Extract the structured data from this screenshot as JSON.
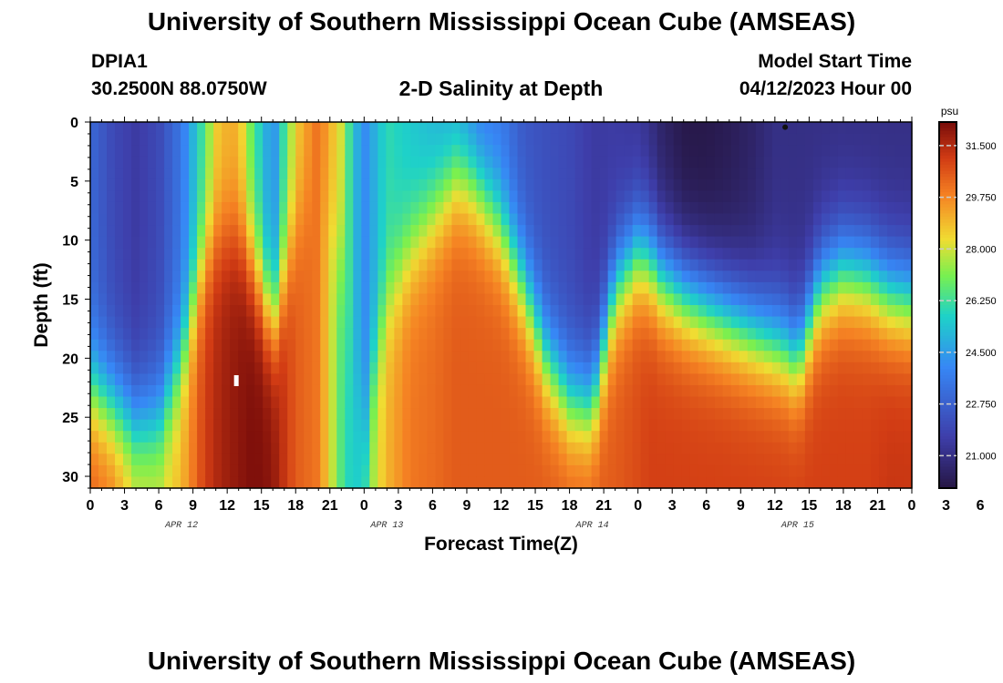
{
  "page": {
    "title": "University of Southern Mississippi Ocean Cube (AMSEAS)",
    "footer_title": "University of Southern Mississippi Ocean Cube (AMSEAS)",
    "station_id": "DPIA1",
    "coordinates": "30.2500N  88.0750W",
    "plot_title": "2-D Salinity at Depth",
    "model_start_label": "Model Start Time",
    "model_start_value": "04/12/2023 Hour 00"
  },
  "chart_data": {
    "type": "heatmap",
    "title": "2-D Salinity at Depth",
    "xlabel": "Forecast Time(Z)",
    "ylabel": "Depth (ft)",
    "x_range_hours": [
      0,
      72
    ],
    "y_range": [
      0,
      31
    ],
    "y_ticks": [
      "0",
      "5",
      "10",
      "15",
      "20",
      "25",
      "30"
    ],
    "x_tick_labels": [
      "0",
      "3",
      "6",
      "9",
      "12",
      "15",
      "18",
      "21",
      "0",
      "3",
      "6",
      "9",
      "12",
      "15",
      "18",
      "21",
      "0",
      "3",
      "6",
      "9",
      "12",
      "15",
      "18",
      "21",
      "0",
      "3",
      "6",
      "9",
      "12",
      "15",
      "18",
      "21",
      "0"
    ],
    "date_labels": [
      {
        "hour": 8,
        "label": "APR 12"
      },
      {
        "hour": 26,
        "label": "APR 13"
      },
      {
        "hour": 44,
        "label": "APR 14"
      },
      {
        "hour": 62,
        "label": "APR 15"
      }
    ],
    "colorbar": {
      "unit": "psu",
      "min": 19.9,
      "max": 32.3,
      "tick_labels": [
        "31.500",
        "29.750",
        "28.000",
        "26.250",
        "24.500",
        "22.750",
        "21.000"
      ],
      "tick_values": [
        31.5,
        29.75,
        28.0,
        26.25,
        24.5,
        22.75,
        21.0
      ]
    },
    "profiles": {
      "hour": [
        0,
        2,
        4,
        6,
        8,
        10,
        11,
        12,
        13,
        14,
        15,
        16,
        18,
        20,
        22,
        23,
        24,
        25,
        26,
        28,
        30,
        32,
        33,
        34,
        36,
        38,
        40,
        42,
        44,
        46,
        48,
        49,
        50,
        52,
        54,
        56,
        58,
        60,
        61,
        62,
        64,
        66,
        68,
        70,
        72
      ],
      "surface_psu": [
        23.0,
        22.0,
        21.5,
        22.0,
        23.5,
        26.5,
        28.5,
        29.0,
        29.0,
        27.0,
        25.5,
        24.0,
        28.5,
        30.2,
        28.0,
        25.5,
        24.0,
        25.0,
        26.0,
        25.5,
        25.0,
        24.5,
        24.0,
        23.5,
        23.5,
        22.5,
        22.2,
        22.0,
        21.5,
        21.5,
        21.3,
        21.0,
        20.5,
        20.0,
        20.0,
        20.2,
        20.5,
        21.0,
        21.0,
        21.0,
        21.0,
        21.0,
        21.0,
        21.0,
        21.0
      ],
      "bottom_psu": [
        30.5,
        30.0,
        28.5,
        28.2,
        29.0,
        31.0,
        31.5,
        31.8,
        32.0,
        32.2,
        32.2,
        32.0,
        30.5,
        30.0,
        26.5,
        25.5,
        26.0,
        28.0,
        29.0,
        30.0,
        30.2,
        30.5,
        30.5,
        30.5,
        30.5,
        30.5,
        30.5,
        30.5,
        30.5,
        30.5,
        30.8,
        31.0,
        31.0,
        31.0,
        31.0,
        31.0,
        31.0,
        31.0,
        31.0,
        31.0,
        31.0,
        31.0,
        31.0,
        31.2,
        31.2
      ],
      "halocline_depth_ft": [
        22.5,
        24.0,
        25.5,
        25.0,
        20.0,
        11.5,
        10.0,
        9.5,
        9.5,
        11.5,
        14.0,
        17.0,
        9.0,
        5.0,
        12.0,
        22.0,
        26.0,
        20.0,
        15.0,
        11.0,
        8.0,
        5.0,
        5.0,
        6.0,
        9.0,
        14.0,
        20.0,
        23.5,
        24.0,
        14.0,
        11.0,
        11.5,
        13.0,
        14.5,
        15.5,
        16.5,
        17.5,
        18.5,
        19.0,
        20.0,
        14.0,
        12.5,
        13.0,
        14.5,
        15.0
      ]
    },
    "marker": {
      "hour": 12.8,
      "depth_ft": 21.9
    },
    "surface_dot": {
      "hour": 60.9,
      "depth_ft": 0.2
    }
  }
}
